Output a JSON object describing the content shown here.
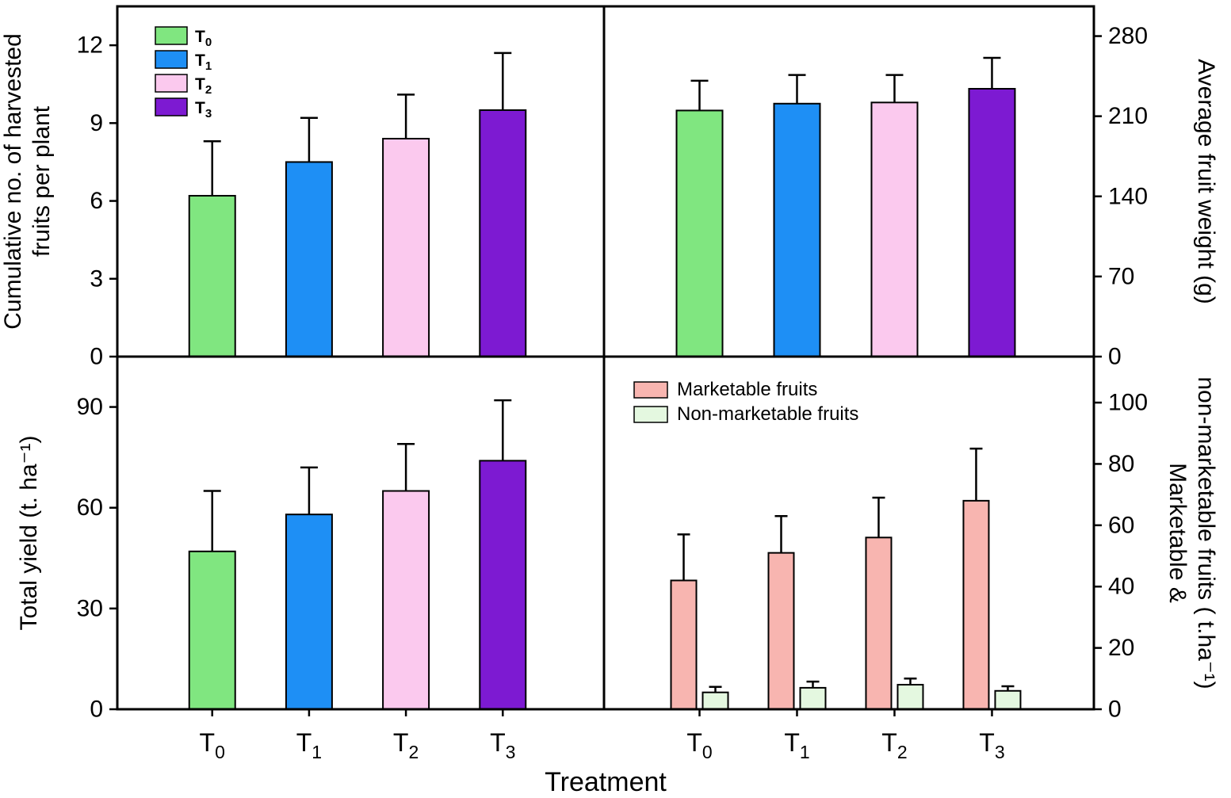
{
  "figure": {
    "xlabel": "Treatment",
    "background": "#ffffff",
    "frame_color": "#000000"
  },
  "legends": {
    "treatments": {
      "items": [
        {
          "label": "T0",
          "color": "#80e680"
        },
        {
          "label": "T1",
          "color": "#1e8ff5"
        },
        {
          "label": "T2",
          "color": "#fbc9ee"
        },
        {
          "label": "T3",
          "color": "#7d1ad2"
        }
      ]
    },
    "marketability": {
      "items": [
        {
          "label": "Marketable fruits",
          "color": "#f8b5b0"
        },
        {
          "label": "Non-marketable fruits",
          "color": "#e4f8e0"
        }
      ]
    }
  },
  "chart_data": [
    {
      "id": "cumulative-fruits-per-plant",
      "type": "bar",
      "position": "top-left",
      "axis_side": "left",
      "categories": [
        "T0",
        "T1",
        "T2",
        "T3"
      ],
      "values": [
        6.2,
        7.5,
        8.4,
        9.5
      ],
      "errors_up": [
        2.1,
        1.7,
        1.7,
        2.2
      ],
      "bar_colors": [
        "#80e680",
        "#1e8ff5",
        "#fbc9ee",
        "#7d1ad2"
      ],
      "ylabel_lines": [
        "Cumulative no. of harvested",
        "fruits per plant"
      ],
      "yticks": [
        0,
        3,
        6,
        9,
        12
      ],
      "ylim": [
        0,
        13.5
      ],
      "show_x_labels": false,
      "grid": false
    },
    {
      "id": "average-fruit-weight",
      "type": "bar",
      "position": "top-right",
      "axis_side": "right",
      "categories": [
        "T0",
        "T1",
        "T2",
        "T3"
      ],
      "values": [
        215,
        221,
        222,
        234
      ],
      "errors_up": [
        26,
        25,
        24,
        27
      ],
      "bar_colors": [
        "#80e680",
        "#1e8ff5",
        "#fbc9ee",
        "#7d1ad2"
      ],
      "ylabel_lines": [
        "Average fruit weight (g)"
      ],
      "yticks": [
        0,
        70,
        140,
        210,
        280
      ],
      "ylim": [
        0,
        306
      ],
      "show_x_labels": false,
      "grid": false
    },
    {
      "id": "total-yield",
      "type": "bar",
      "position": "bottom-left",
      "axis_side": "left",
      "categories": [
        "T0",
        "T1",
        "T2",
        "T3"
      ],
      "values": [
        47,
        58,
        65,
        74
      ],
      "errors_up": [
        18,
        14,
        14,
        18
      ],
      "bar_colors": [
        "#80e680",
        "#1e8ff5",
        "#fbc9ee",
        "#7d1ad2"
      ],
      "ylabel_lines": [
        "Total yield (t. ha⁻¹)"
      ],
      "yticks": [
        0,
        30,
        60,
        90
      ],
      "ylim": [
        0,
        105
      ],
      "show_x_labels": true,
      "grid": false
    },
    {
      "id": "marketable-nonmarketable-yield",
      "type": "bar",
      "position": "bottom-right",
      "axis_side": "right",
      "categories": [
        "T0",
        "T1",
        "T2",
        "T3"
      ],
      "series": [
        {
          "name": "Marketable fruits",
          "color": "#f8b5b0",
          "values": [
            42,
            51,
            56,
            68
          ],
          "errors_up": [
            15,
            12,
            13,
            17
          ]
        },
        {
          "name": "Non-marketable fruits",
          "color": "#e4f8e0",
          "values": [
            5.5,
            7,
            8,
            6
          ],
          "errors_up": [
            1.8,
            2,
            2,
            1.5
          ]
        }
      ],
      "ylabel_lines": [
        "Marketable &",
        "non-marketable fruits ( t.ha⁻¹)"
      ],
      "yticks": [
        0,
        20,
        40,
        60,
        80,
        100
      ],
      "ylim": [
        0,
        115
      ],
      "show_x_labels": true,
      "grid": false
    }
  ]
}
